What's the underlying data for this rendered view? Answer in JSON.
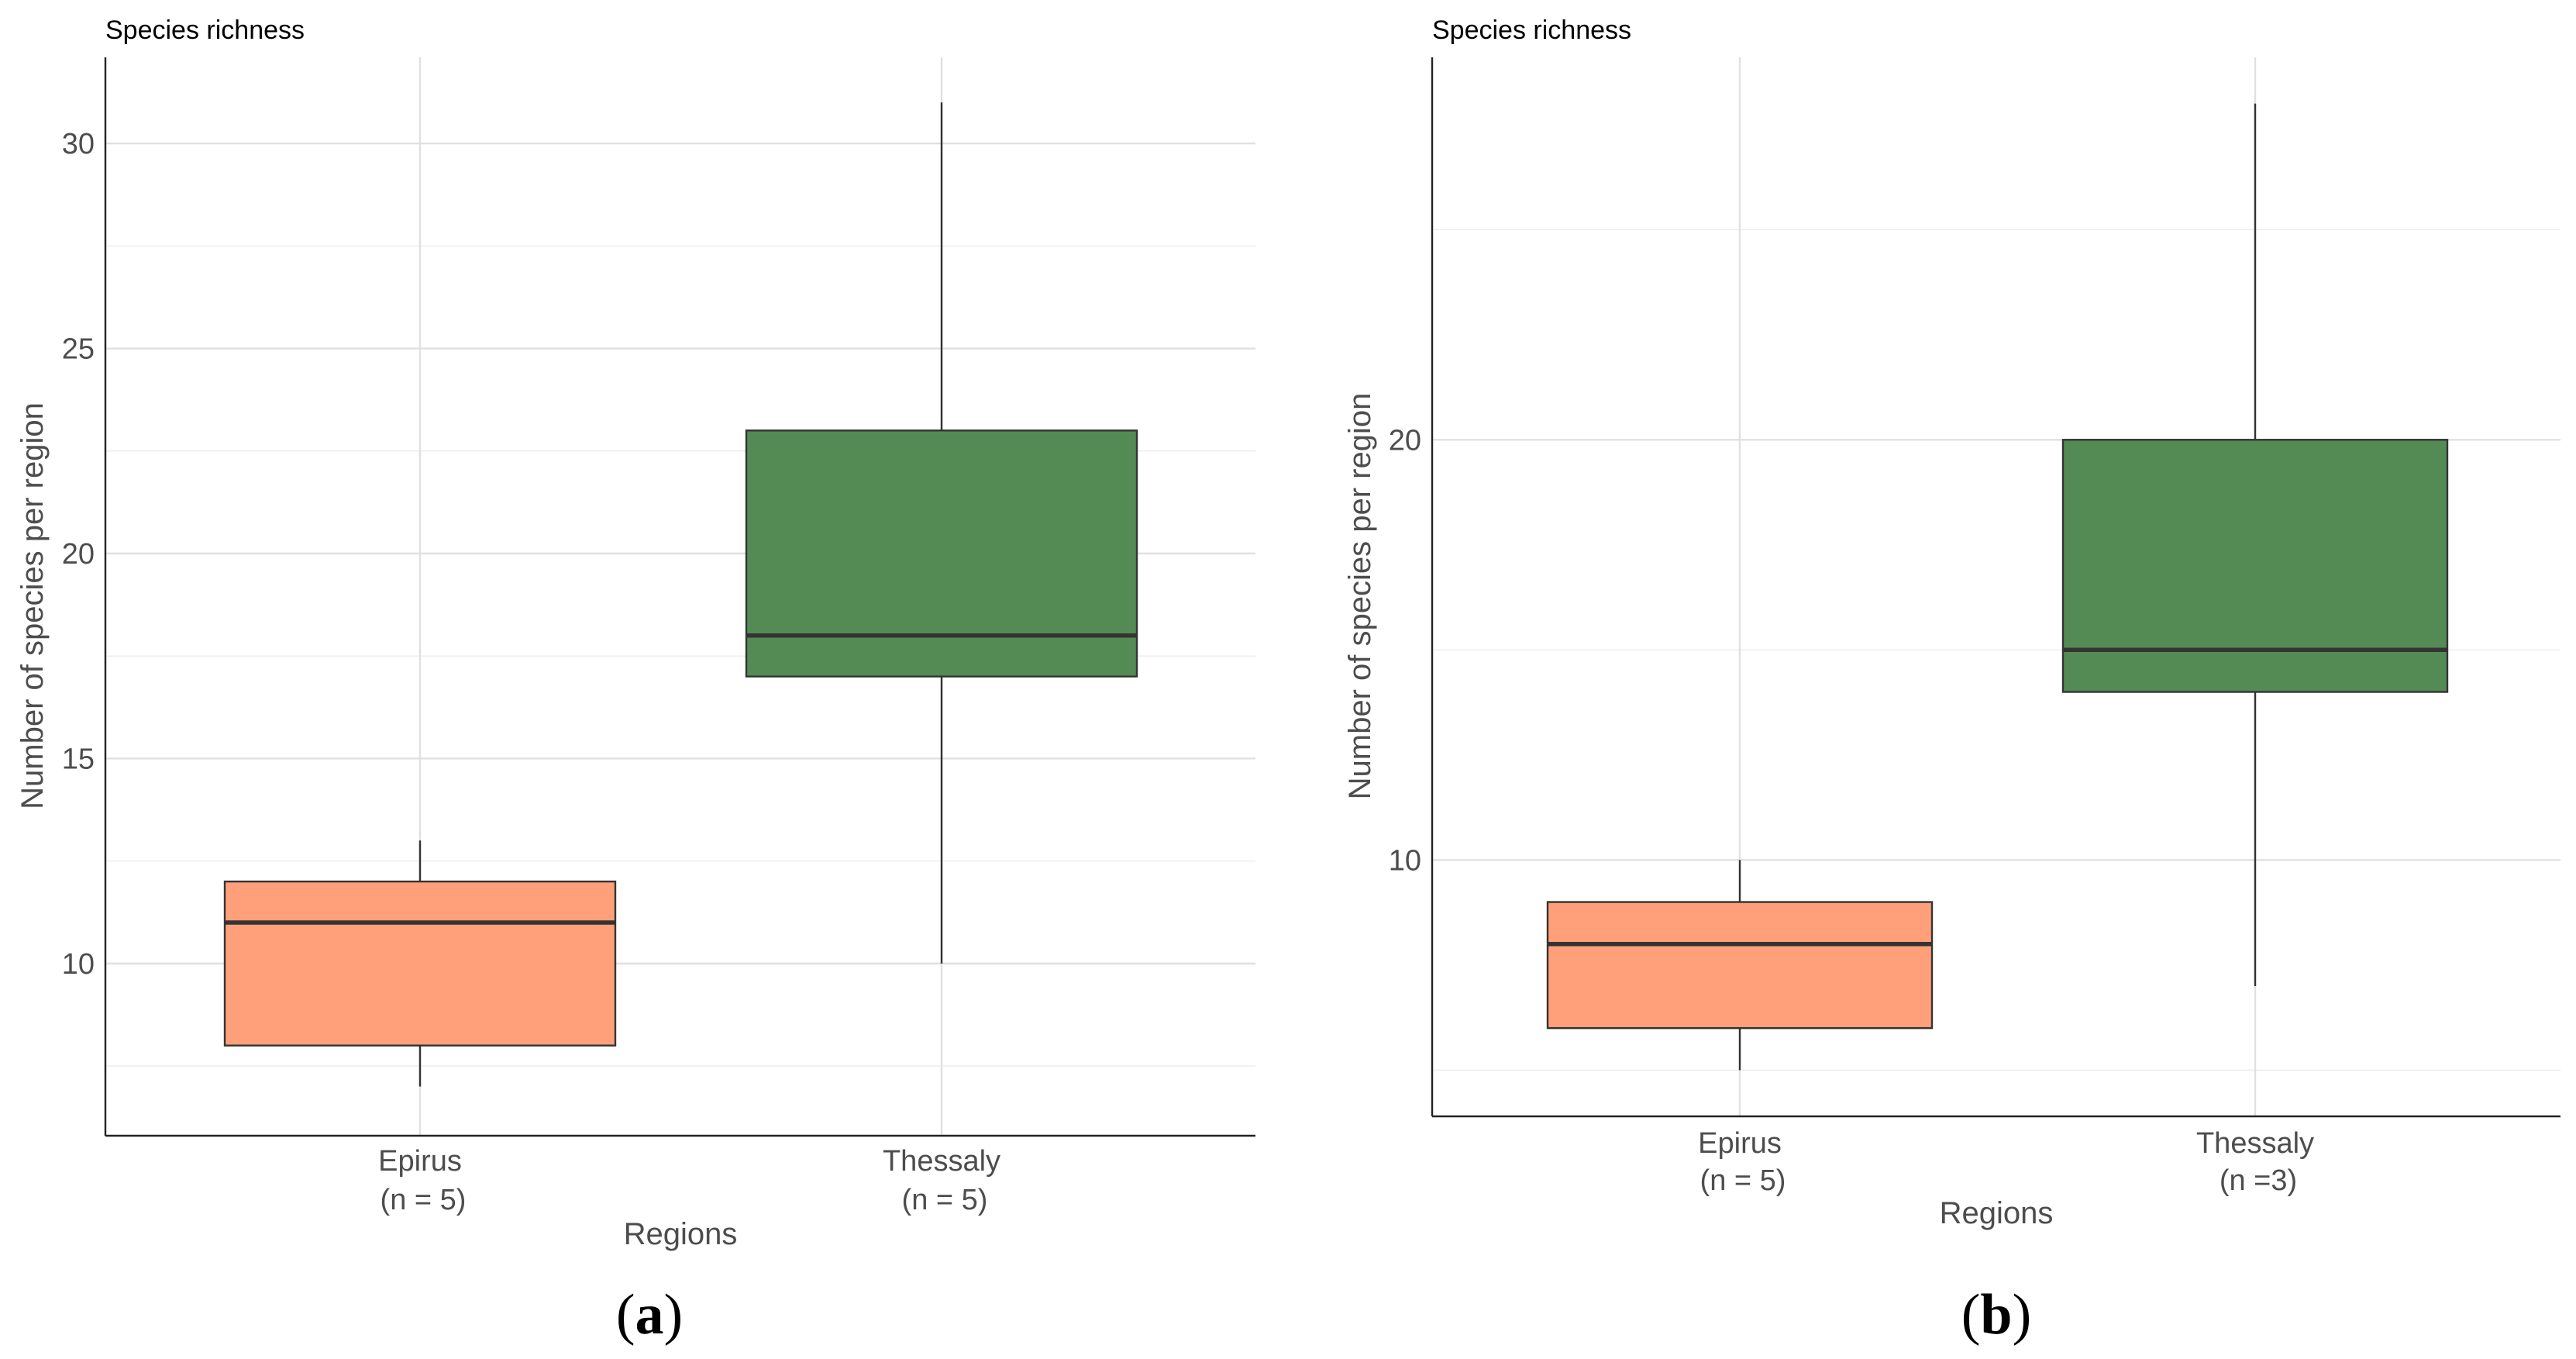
{
  "chart_data": [
    {
      "type": "box",
      "panel_label": "a",
      "title": "Species richness",
      "xlabel": "Regions",
      "ylabel": "Number of species per region",
      "ylim": [
        5.8,
        32.1
      ],
      "yticks": [
        10,
        15,
        20,
        25,
        30
      ],
      "grid": true,
      "categories": [
        {
          "label": "Epirus",
          "sublabel": "(n = 5)",
          "color": "#ffa07a",
          "min": 7,
          "q1": 8,
          "median": 11,
          "q3": 12,
          "max": 13
        },
        {
          "label": "Thessaly",
          "sublabel": "(n = 5)",
          "color": "#548b54",
          "min": 10,
          "q1": 17,
          "median": 18,
          "q3": 23,
          "max": 31
        }
      ]
    },
    {
      "type": "box",
      "panel_label": "b",
      "title": "Species richness",
      "xlabel": "Regions",
      "ylabel": "Number of species per region",
      "ylim": [
        3.9,
        29.1
      ],
      "yticks": [
        10,
        20
      ],
      "grid": true,
      "categories": [
        {
          "label": "Epirus",
          "sublabel": "(n = 5)",
          "color": "#ffa07a",
          "min": 5,
          "q1": 6,
          "median": 8,
          "q3": 9,
          "max": 10
        },
        {
          "label": "Thessaly",
          "sublabel": "(n =3)",
          "color": "#548b54",
          "min": 7,
          "q1": 14,
          "median": 15,
          "q3": 20,
          "max": 28
        }
      ]
    }
  ]
}
